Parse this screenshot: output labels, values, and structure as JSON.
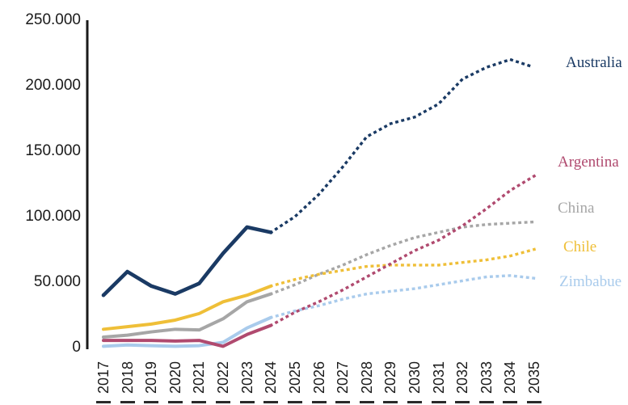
{
  "chart_data": {
    "type": "line",
    "title": "",
    "xlabel": "",
    "ylabel": "",
    "ylim": [
      0,
      250000
    ],
    "grid": false,
    "legend_position": "right-end-of-lines",
    "line_style_note": "solid history 2017-2024, dotted forecast 2024-2035",
    "x": [
      "2017",
      "2018",
      "2019",
      "2020",
      "2021",
      "2022",
      "2023",
      "2024",
      "2025",
      "2026",
      "2027",
      "2028",
      "2029",
      "2030",
      "2031",
      "2032",
      "2033",
      "2034",
      "2035"
    ],
    "y_ticks": [
      {
        "value": 0,
        "label": "0"
      },
      {
        "value": 50000,
        "label": "50.000"
      },
      {
        "value": 100000,
        "label": "100.000"
      },
      {
        "value": 150000,
        "label": "150.000"
      },
      {
        "value": 200000,
        "label": "200.000"
      },
      {
        "value": 250000,
        "label": "250.000"
      }
    ],
    "solid_until_year": "2024",
    "series": [
      {
        "name": "Australia",
        "color": "#1A3A64",
        "values": [
          40000,
          58000,
          47000,
          41000,
          49000,
          72000,
          92000,
          88000,
          100000,
          117000,
          138000,
          161000,
          171000,
          176000,
          186000,
          205000,
          214000,
          220000,
          214000
        ]
      },
      {
        "name": "Argentina",
        "color": "#B04A6F",
        "values": [
          5500,
          5500,
          5500,
          5000,
          5500,
          1000,
          10000,
          17000,
          27000,
          35000,
          44000,
          54000,
          64000,
          74000,
          82000,
          93000,
          106000,
          120000,
          131000
        ]
      },
      {
        "name": "China",
        "color": "#A6A6A6",
        "values": [
          8000,
          9500,
          12000,
          14000,
          13500,
          22000,
          35000,
          41000,
          48000,
          56000,
          63000,
          71000,
          78000,
          84000,
          88000,
          92000,
          94000,
          95000,
          96000
        ]
      },
      {
        "name": "Chile",
        "color": "#EFBF38",
        "values": [
          14000,
          16000,
          18000,
          21000,
          26000,
          35000,
          40000,
          47000,
          52000,
          56000,
          59000,
          62000,
          63000,
          63000,
          63000,
          65000,
          67000,
          70000,
          75000
        ]
      },
      {
        "name": "Zimbabue",
        "color": "#A9CBEC",
        "values": [
          1000,
          2000,
          1500,
          1000,
          1500,
          4000,
          15000,
          23000,
          28000,
          32000,
          37000,
          41000,
          43000,
          45000,
          48000,
          51000,
          54000,
          55000,
          53000
        ]
      }
    ],
    "axis_color": "#1a1a1a"
  }
}
